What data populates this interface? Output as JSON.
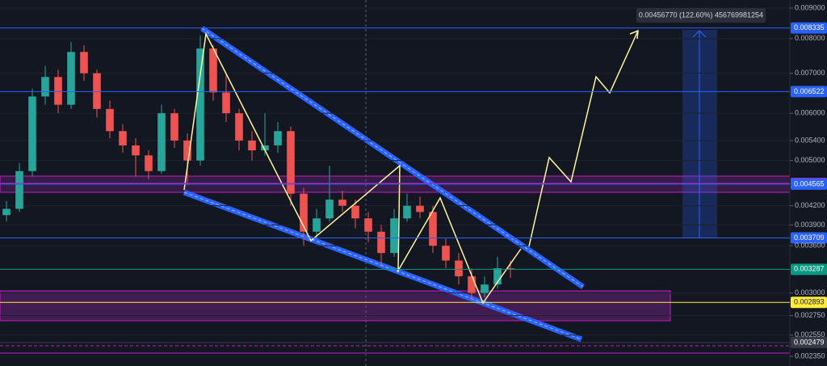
{
  "chart_data": {
    "type": "candlestick",
    "log_scale": true,
    "grid": true,
    "ylim": [
      0.002264,
      0.009285
    ],
    "yticks": [
      {
        "value": 0.009,
        "label": "0.009000"
      },
      {
        "value": 0.008,
        "label": "0.008000"
      },
      {
        "value": 0.007,
        "label": "0.007000"
      },
      {
        "value": 0.006,
        "label": "0.006000"
      },
      {
        "value": 0.0054,
        "label": "0.005400"
      },
      {
        "value": 0.005,
        "label": "0.005000"
      },
      {
        "value": 0.0042,
        "label": "0.004200"
      },
      {
        "value": 0.0039,
        "label": "0.003900"
      },
      {
        "value": 0.0036,
        "label": "0.003600"
      },
      {
        "value": 0.003,
        "label": "0.003000"
      },
      {
        "value": 0.00275,
        "label": "0.002750"
      },
      {
        "value": 0.00255,
        "label": "0.002550"
      },
      {
        "value": 0.00235,
        "label": "0.002350"
      }
    ],
    "up_color": "#26a69a",
    "down_color": "#ef5350",
    "open": [
      0.00405,
      0.00415,
      0.0048,
      0.0064,
      0.0069,
      0.0062,
      0.0076,
      0.007,
      0.0061,
      0.0056,
      0.0053,
      0.0051,
      0.0048,
      0.006,
      0.0054,
      0.005,
      0.0077,
      0.0065,
      0.006,
      0.0054,
      0.0052,
      0.0053,
      0.0056,
      0.0044,
      0.0038,
      0.004,
      0.0043,
      0.0042,
      0.004,
      0.0038,
      0.0035,
      0.004,
      0.0042,
      0.0041,
      0.0036,
      0.0034,
      0.0032,
      0.003,
      0.0031,
      0.0033
    ],
    "high": [
      0.00428,
      0.00495,
      0.0066,
      0.0072,
      0.0071,
      0.0079,
      0.0078,
      0.0071,
      0.0063,
      0.00575,
      0.00545,
      0.0052,
      0.0062,
      0.0061,
      0.00555,
      0.0081,
      0.0078,
      0.007,
      0.0061,
      0.0056,
      0.006,
      0.0058,
      0.0057,
      0.0045,
      0.00415,
      0.0049,
      0.00445,
      0.0043,
      0.0041,
      0.0039,
      0.00415,
      0.0044,
      0.00435,
      0.0042,
      0.0037,
      0.0035,
      0.0033,
      0.0032,
      0.00345,
      0.0034
    ],
    "low": [
      0.00395,
      0.0041,
      0.0047,
      0.0062,
      0.006,
      0.0061,
      0.0068,
      0.0059,
      0.00545,
      0.00515,
      0.0047,
      0.00465,
      0.00475,
      0.00525,
      0.00455,
      0.0049,
      0.0063,
      0.0058,
      0.0052,
      0.005,
      0.0051,
      0.00515,
      0.0042,
      0.0036,
      0.0037,
      0.00395,
      0.0041,
      0.00385,
      0.00365,
      0.00335,
      0.00345,
      0.00395,
      0.004,
      0.0035,
      0.0033,
      0.0031,
      0.00292,
      0.00295,
      0.00305,
      0.00318
    ],
    "close": [
      0.00415,
      0.0048,
      0.0064,
      0.0069,
      0.0062,
      0.0076,
      0.007,
      0.0061,
      0.0056,
      0.0053,
      0.0051,
      0.0048,
      0.006,
      0.0054,
      0.005,
      0.0077,
      0.0065,
      0.006,
      0.0054,
      0.0052,
      0.0053,
      0.0056,
      0.0044,
      0.0038,
      0.004,
      0.0043,
      0.0042,
      0.004,
      0.0038,
      0.0035,
      0.004,
      0.0042,
      0.0041,
      0.0036,
      0.0034,
      0.0032,
      0.003,
      0.0031,
      0.0033,
      0.00329
    ],
    "levels": [
      {
        "value": 0.008335,
        "color": "#2962ff"
      },
      {
        "value": 0.006522,
        "color": "#2962ff"
      },
      {
        "value": 0.004578,
        "color": "#c21cc2"
      },
      {
        "value": 0.004565,
        "color": "#2962ff"
      },
      {
        "value": 0.003709,
        "color": "#2962ff"
      },
      {
        "value": 0.003287,
        "color": "#089981"
      },
      {
        "value": 0.002893,
        "color": "#ffeb3b"
      },
      {
        "value": 0.002479,
        "color": "#363a45"
      }
    ],
    "measure_label": "0.00456770 (122.60%) 456769981254"
  }
}
